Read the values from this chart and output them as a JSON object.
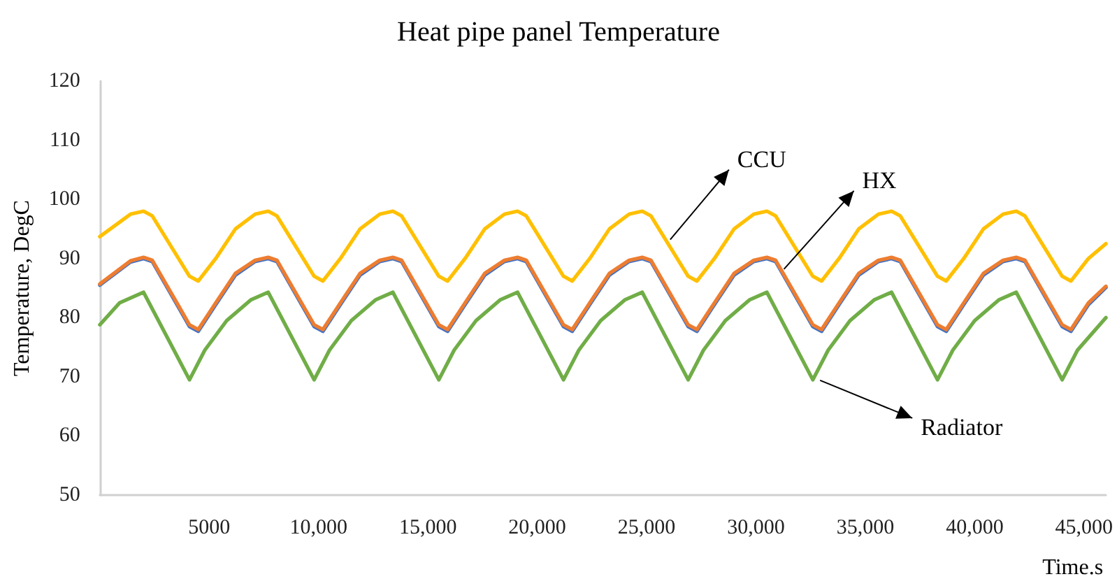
{
  "chart_data": {
    "type": "line",
    "title": "Heat pipe panel Temperature",
    "xlabel": "Time.s",
    "ylabel": "Temperature, DegC",
    "xlim": [
      0,
      46000
    ],
    "xticks": [
      {
        "value": 5000,
        "label": "5000"
      },
      {
        "value": 10000,
        "label": "10,000"
      },
      {
        "value": 15000,
        "label": "15,000"
      },
      {
        "value": 20000,
        "label": "20,000"
      },
      {
        "value": 25000,
        "label": "25,000"
      },
      {
        "value": 30000,
        "label": "30,000"
      },
      {
        "value": 35000,
        "label": "35,000"
      },
      {
        "value": 40000,
        "label": "40,000"
      },
      {
        "value": 45000,
        "label": "45,000"
      }
    ],
    "ylim": [
      50,
      120
    ],
    "yticks": [
      50,
      60,
      70,
      80,
      90,
      100,
      110,
      120
    ],
    "grid": false,
    "marker": "none",
    "line_style": "solid",
    "annotations": [
      {
        "text": "CCU",
        "x": 26080,
        "y": 93.2
      },
      {
        "text": "HX",
        "x": 31280,
        "y": 88.2
      },
      {
        "text": "Radiator",
        "x": 32930,
        "y": 69.4
      }
    ],
    "series": [
      {
        "color": "#ffc000",
        "x": [
          0,
          1400,
          2000,
          2400,
          4100,
          4500,
          5300,
          6200,
          7100,
          7700,
          8100,
          9800,
          10200,
          11000,
          11900,
          12800,
          13400,
          13800,
          15500,
          15900,
          16700,
          17600,
          18500,
          19100,
          19500,
          21200,
          21600,
          22400,
          23300,
          24200,
          24800,
          25200,
          26900,
          27300,
          28100,
          29000,
          29900,
          30500,
          30900,
          32600,
          33000,
          33800,
          34700,
          35600,
          36200,
          36600,
          38300,
          38700,
          39500,
          40400,
          41300,
          41900,
          42300,
          44000,
          44400,
          45200,
          46000
        ],
        "values": [
          93.7,
          97.5,
          98,
          97.2,
          87,
          86.2,
          90,
          95,
          97.5,
          98,
          97.2,
          87,
          86.2,
          90,
          95,
          97.5,
          98,
          97.2,
          87,
          86.2,
          90,
          95,
          97.5,
          98,
          97.2,
          87,
          86.2,
          90,
          95,
          97.5,
          98,
          97.2,
          87,
          86.2,
          90,
          95,
          97.5,
          98,
          97.2,
          87,
          86.2,
          90,
          95,
          97.5,
          98,
          97.2,
          87,
          86.2,
          90,
          95,
          97.5,
          98,
          97.2,
          87,
          86.2,
          90,
          92.5
        ]
      },
      {
        "color": "#4472c4",
        "x": [
          0,
          1400,
          2000,
          2400,
          4100,
          4500,
          5300,
          6200,
          7100,
          7700,
          8100,
          9800,
          10200,
          11000,
          11900,
          12800,
          13400,
          13800,
          15500,
          15900,
          16700,
          17600,
          18500,
          19100,
          19500,
          21200,
          21600,
          22400,
          23300,
          24200,
          24800,
          25200,
          26900,
          27300,
          28100,
          29000,
          29900,
          30500,
          30900,
          32600,
          33000,
          33800,
          34700,
          35600,
          36200,
          36600,
          38300,
          38700,
          39500,
          40400,
          41300,
          41900,
          42300,
          44000,
          44400,
          45200,
          46000
        ],
        "values": [
          85.5,
          89.4,
          90,
          89.5,
          78.5,
          77.7,
          82.2,
          87.2,
          89.5,
          90,
          89.5,
          78.5,
          77.7,
          82.2,
          87.2,
          89.5,
          90,
          89.5,
          78.5,
          77.7,
          82.2,
          87.2,
          89.5,
          90,
          89.5,
          78.5,
          77.7,
          82.2,
          87.2,
          89.5,
          90,
          89.5,
          78.5,
          77.7,
          82.2,
          87.2,
          89.5,
          90,
          89.5,
          78.5,
          77.7,
          82.2,
          87.2,
          89.5,
          90,
          89.5,
          78.5,
          77.7,
          82.2,
          87.2,
          89.5,
          90,
          89.5,
          78.5,
          77.7,
          82.2,
          85.1
        ]
      },
      {
        "color": "#ed7d31",
        "x": [
          0,
          1400,
          2000,
          2400,
          4100,
          4500,
          5300,
          6200,
          7100,
          7700,
          8100,
          9800,
          10200,
          11000,
          11900,
          12800,
          13400,
          13800,
          15500,
          15900,
          16700,
          17600,
          18500,
          19100,
          19500,
          21200,
          21600,
          22400,
          23300,
          24200,
          24800,
          25200,
          26900,
          27300,
          28100,
          29000,
          29900,
          30500,
          30900,
          32600,
          33000,
          33800,
          34700,
          35600,
          36200,
          36600,
          38300,
          38700,
          39500,
          40400,
          41300,
          41900,
          42300,
          44000,
          44400,
          45200,
          46000
        ],
        "values": [
          85.7,
          89.6,
          90.2,
          89.7,
          78.8,
          78,
          82.5,
          87.5,
          89.7,
          90.2,
          89.7,
          78.8,
          78,
          82.5,
          87.5,
          89.7,
          90.2,
          89.7,
          78.8,
          78,
          82.5,
          87.5,
          89.7,
          90.2,
          89.7,
          78.8,
          78,
          82.5,
          87.5,
          89.7,
          90.2,
          89.7,
          78.8,
          78,
          82.5,
          87.5,
          89.7,
          90.2,
          89.7,
          78.8,
          78,
          82.5,
          87.5,
          89.7,
          90.2,
          89.7,
          78.8,
          78,
          82.5,
          87.5,
          89.7,
          90.2,
          89.7,
          78.8,
          78,
          82.5,
          85.3
        ]
      },
      {
        "color": "#70ad47",
        "x": [
          0,
          900,
          2000,
          4100,
          4800,
          5800,
          6900,
          7700,
          9800,
          10500,
          11500,
          12600,
          13400,
          15500,
          16200,
          17200,
          18300,
          19100,
          21200,
          21900,
          22900,
          24000,
          24800,
          26900,
          27600,
          28600,
          29700,
          30500,
          32600,
          33300,
          34300,
          35400,
          36200,
          38300,
          39000,
          40000,
          41100,
          41900,
          44000,
          44700,
          46000
        ],
        "values": [
          78.8,
          82.5,
          84.3,
          69.5,
          74.5,
          79.5,
          83,
          84.3,
          69.5,
          74.5,
          79.5,
          83,
          84.3,
          69.5,
          74.5,
          79.5,
          83,
          84.3,
          69.5,
          74.5,
          79.5,
          83,
          84.3,
          69.5,
          74.5,
          79.5,
          83,
          84.3,
          69.5,
          74.5,
          79.5,
          83,
          84.3,
          69.5,
          74.5,
          79.5,
          83,
          84.3,
          69.5,
          74.5,
          80
        ]
      }
    ]
  }
}
